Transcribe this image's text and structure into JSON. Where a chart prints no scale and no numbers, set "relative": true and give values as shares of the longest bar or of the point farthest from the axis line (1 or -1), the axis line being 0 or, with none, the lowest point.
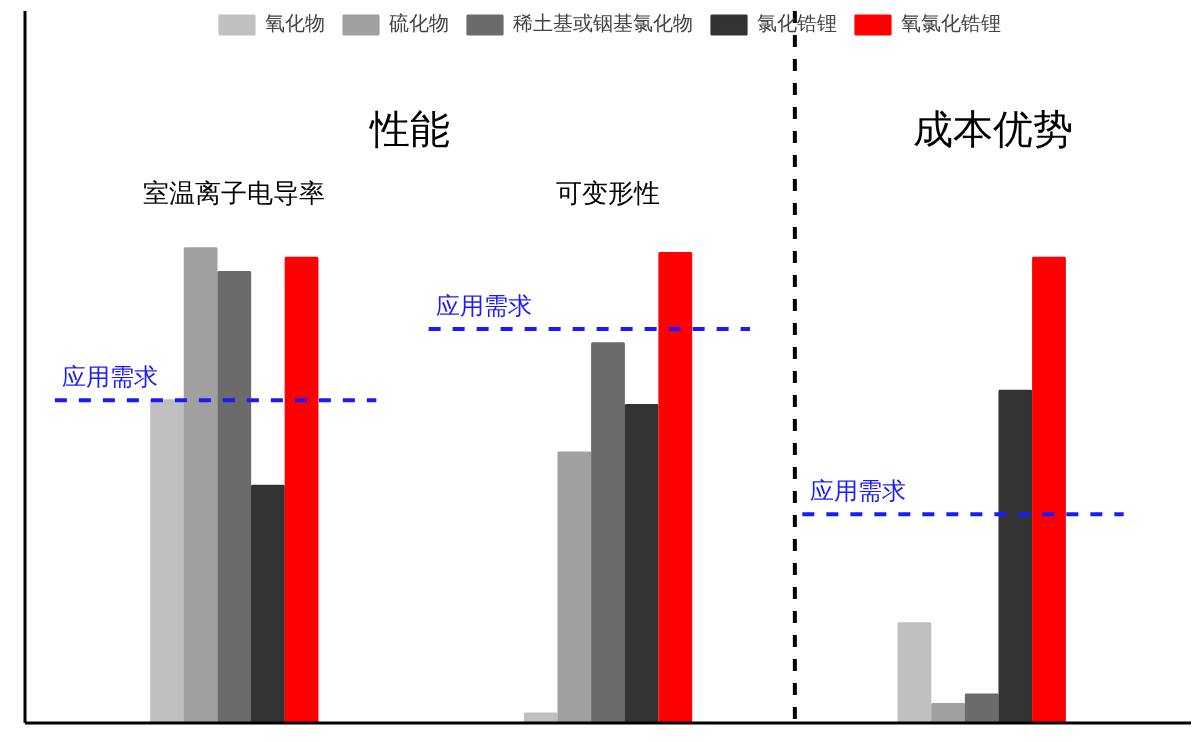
{
  "chart_data": {
    "type": "bar",
    "relative": true,
    "categories": [
      "室温离子电导率",
      "可变形性",
      null
    ],
    "series": [
      {
        "name": "氧化物",
        "color": "#c0c0c0",
        "values": [
          0.68,
          0.02,
          0.21
        ]
      },
      {
        "name": "硫化物",
        "color": "#a0a0a0",
        "values": [
          1.0,
          0.57,
          0.04
        ]
      },
      {
        "name": "稀土基或铟基氯化物",
        "color": "#6b6b6b",
        "values": [
          0.95,
          0.8,
          0.06
        ]
      },
      {
        "name": "氯化锆锂",
        "color": "#333333",
        "values": [
          0.5,
          0.67,
          0.7
        ]
      },
      {
        "name": "氧氯化锆锂",
        "color": "#ff0000",
        "values": [
          0.98,
          0.99,
          0.98
        ]
      }
    ],
    "annotations": [
      "性能",
      "成本优势"
    ],
    "ref_lines": [
      {
        "axis": "y",
        "value": 0.68,
        "label": "应用需求",
        "color": "#1a1aff",
        "line_style": "dashed"
      },
      {
        "axis": "y",
        "value": 0.83,
        "label": "应用需求",
        "color": "#1a1aff",
        "line_style": "dashed"
      },
      {
        "axis": "y",
        "value": 0.44,
        "label": "应用需求",
        "color": "#1a1aff",
        "line_style": "dashed"
      }
    ],
    "legend": "top",
    "grid": false
  }
}
